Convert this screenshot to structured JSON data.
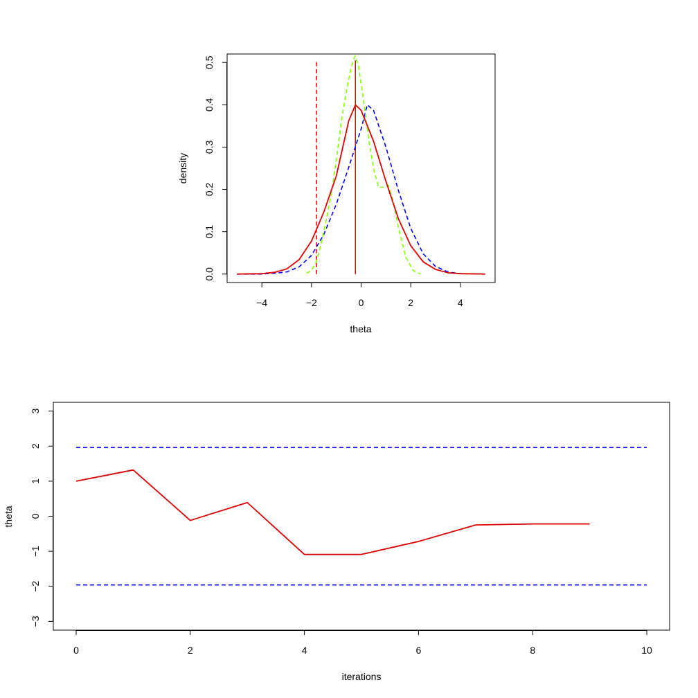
{
  "chart_data": [
    {
      "type": "line",
      "title": "",
      "xlabel": "theta",
      "ylabel": "density",
      "xlim": [
        -5.4,
        5.4
      ],
      "ylim": [
        -0.02,
        0.52
      ],
      "grid": false,
      "legend": "none",
      "xticks": [
        -4,
        -2,
        0,
        2,
        4
      ],
      "yticks": [
        0.0,
        0.1,
        0.2,
        0.3,
        0.4,
        0.5
      ],
      "xtick_labels": [
        "−4",
        "−2",
        "0",
        "2",
        "4"
      ],
      "ytick_labels": [
        "0.0",
        "0.1",
        "0.2",
        "0.3",
        "0.4",
        "0.5"
      ],
      "colors": {
        "blue": "#0000ff",
        "green": "#7fff00",
        "red": "#dd0000",
        "axis": "#000000"
      },
      "series": [
        {
          "style": "dashed",
          "color": "#0000ff",
          "x": [
            -5,
            -4,
            -3.5,
            -3,
            -2.5,
            -2,
            -1.5,
            -1,
            -0.5,
            0,
            0.25,
            0.5,
            1,
            1.5,
            2,
            2.5,
            3,
            3.5,
            4,
            5
          ],
          "y": [
            0.0,
            0.0,
            0.002,
            0.005,
            0.017,
            0.044,
            0.094,
            0.165,
            0.252,
            0.343,
            0.4,
            0.387,
            0.3,
            0.198,
            0.108,
            0.048,
            0.018,
            0.005,
            0.001,
            0.0
          ]
        },
        {
          "style": "dashed",
          "color": "#7fff00",
          "x": [
            -2.2,
            -2.0,
            -1.8,
            -1.6,
            -1.4,
            -1.2,
            -1.0,
            -0.8,
            -0.6,
            -0.4,
            -0.25,
            -0.1,
            0.1,
            0.3,
            0.5,
            0.7,
            0.9,
            1.1,
            1.3,
            1.5,
            1.8,
            2.1,
            2.4
          ],
          "y": [
            0.002,
            0.008,
            0.03,
            0.075,
            0.13,
            0.19,
            0.27,
            0.36,
            0.43,
            0.49,
            0.515,
            0.49,
            0.41,
            0.32,
            0.25,
            0.205,
            0.205,
            0.21,
            0.17,
            0.11,
            0.04,
            0.008,
            0.0
          ]
        },
        {
          "style": "solid",
          "color": "#dd0000",
          "x": [
            -5,
            -4,
            -3.5,
            -3,
            -2.5,
            -2,
            -1.5,
            -1,
            -0.5,
            -0.23,
            0,
            0.5,
            1,
            1.5,
            2,
            2.5,
            3,
            3.5,
            4,
            5
          ],
          "y": [
            0.0,
            0.001,
            0.004,
            0.012,
            0.034,
            0.078,
            0.147,
            0.232,
            0.362,
            0.4,
            0.387,
            0.314,
            0.219,
            0.131,
            0.067,
            0.029,
            0.011,
            0.003,
            0.001,
            0.0
          ]
        }
      ],
      "vlines": [
        {
          "x": -1.8,
          "y0": 0.0,
          "y1": 0.505,
          "style": "dashed",
          "color": "#dd0000"
        },
        {
          "x": -0.23,
          "y0": 0.0,
          "y1": 0.505,
          "style": "solid",
          "color": "#dd0000"
        }
      ]
    },
    {
      "type": "line",
      "title": "",
      "xlabel": "iterations",
      "ylabel": "theta",
      "xlim": [
        -0.4,
        10.4
      ],
      "ylim": [
        -3.25,
        3.25
      ],
      "grid": false,
      "legend": "none",
      "xticks": [
        0,
        2,
        4,
        6,
        8,
        10
      ],
      "yticks": [
        -3,
        -2,
        -1,
        0,
        1,
        2,
        3
      ],
      "xtick_labels": [
        "0",
        "2",
        "4",
        "6",
        "8",
        "10"
      ],
      "ytick_labels": [
        "−3",
        "−2",
        "−1",
        "0",
        "1",
        "2",
        "3"
      ],
      "colors": {
        "blue": "#0000ff",
        "red": "#dd0000",
        "axis": "#000000"
      },
      "series": [
        {
          "style": "solid",
          "color": "#dd0000",
          "x": [
            0,
            1,
            2,
            3,
            4,
            5,
            6,
            7,
            8,
            9
          ],
          "y": [
            1.0,
            1.32,
            -0.12,
            0.39,
            -1.09,
            -1.09,
            -0.72,
            -0.25,
            -0.22,
            -0.22
          ]
        }
      ],
      "hlines": [
        {
          "y": 1.96,
          "x0": 0,
          "x1": 10,
          "style": "dashed",
          "color": "#0000ff"
        },
        {
          "y": -1.96,
          "x0": 0,
          "x1": 10,
          "style": "dashed",
          "color": "#0000ff"
        }
      ]
    }
  ]
}
